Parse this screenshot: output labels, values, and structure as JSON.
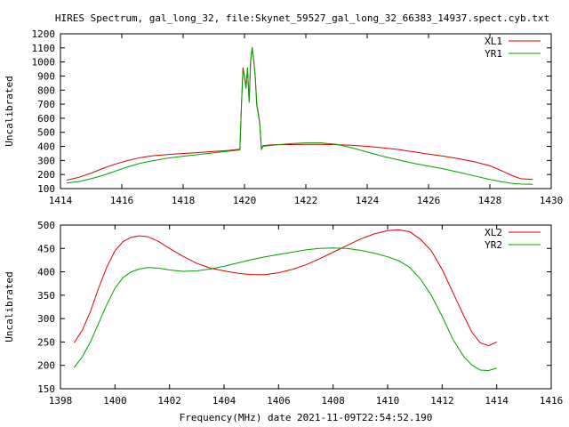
{
  "title": "HIRES Spectrum, gal_long_32, file:Skynet_59527_gal_long_32_66383_14937.spect.cyb.txt",
  "xlabel": "Frequency(MHz) date 2021-11-09T22:54:52.190",
  "chart_data": [
    {
      "type": "line",
      "xlabel": "",
      "ylabel": "Uncalibrated",
      "xlim": [
        1414,
        1430
      ],
      "ylim": [
        100,
        1200
      ],
      "xticks": [
        1414,
        1416,
        1418,
        1420,
        1422,
        1424,
        1426,
        1428,
        1430
      ],
      "yticks": [
        100,
        200,
        300,
        400,
        500,
        600,
        700,
        800,
        900,
        1000,
        1100,
        1200
      ],
      "legend": "top-right",
      "grid": false,
      "series": [
        {
          "name": "XL1",
          "color": "#dd0000",
          "x": [
            1414.2,
            1414.6,
            1415,
            1415.4,
            1415.8,
            1416.2,
            1416.6,
            1417,
            1417.5,
            1418,
            1418.5,
            1419,
            1419.5,
            1419.85,
            1419.9,
            1419.95,
            1420.0,
            1420.05,
            1420.1,
            1420.15,
            1420.2,
            1420.25,
            1420.3,
            1420.35,
            1420.4,
            1420.45,
            1420.5,
            1420.55,
            1420.6,
            1420.8,
            1421,
            1421.5,
            1422,
            1422.5,
            1423,
            1423.5,
            1424,
            1424.5,
            1425,
            1425.5,
            1426,
            1426.5,
            1427,
            1427.5,
            1428,
            1428.4,
            1428.7,
            1429,
            1429.4
          ],
          "values": [
            160,
            180,
            210,
            245,
            275,
            300,
            320,
            333,
            342,
            350,
            356,
            364,
            372,
            380,
            700,
            960,
            900,
            820,
            950,
            720,
            1000,
            1100,
            1020,
            900,
            700,
            640,
            560,
            380,
            405,
            410,
            412,
            413,
            414,
            414,
            412,
            408,
            400,
            390,
            378,
            362,
            345,
            330,
            312,
            290,
            262,
            225,
            195,
            170,
            165
          ]
        },
        {
          "name": "YR1",
          "color": "#00a000",
          "x": [
            1414.2,
            1414.6,
            1415,
            1415.4,
            1415.8,
            1416.2,
            1416.6,
            1417,
            1417.5,
            1418,
            1418.5,
            1419,
            1419.5,
            1419.85,
            1419.9,
            1419.95,
            1420.0,
            1420.05,
            1420.1,
            1420.15,
            1420.2,
            1420.25,
            1420.3,
            1420.35,
            1420.4,
            1420.45,
            1420.5,
            1420.55,
            1420.6,
            1420.8,
            1421,
            1421.5,
            1422,
            1422.5,
            1423,
            1423.5,
            1424,
            1424.5,
            1425,
            1425.5,
            1426,
            1426.5,
            1427,
            1427.5,
            1428,
            1428.4,
            1428.7,
            1429,
            1429.4
          ],
          "values": [
            140,
            150,
            170,
            195,
            225,
            255,
            280,
            298,
            316,
            330,
            342,
            355,
            366,
            375,
            690,
            950,
            890,
            810,
            960,
            710,
            1010,
            1105,
            1010,
            890,
            690,
            630,
            550,
            375,
            400,
            405,
            410,
            420,
            425,
            425,
            415,
            390,
            360,
            330,
            305,
            280,
            260,
            240,
            215,
            190,
            165,
            148,
            138,
            132,
            130
          ]
        }
      ]
    },
    {
      "type": "line",
      "xlabel": "Frequency(MHz) date 2021-11-09T22:54:52.190",
      "ylabel": "Uncalibrated",
      "xlim": [
        1398,
        1416
      ],
      "ylim": [
        150,
        500
      ],
      "xticks": [
        1398,
        1400,
        1402,
        1404,
        1406,
        1408,
        1410,
        1412,
        1414,
        1416
      ],
      "yticks": [
        150,
        200,
        250,
        300,
        350,
        400,
        450,
        500
      ],
      "legend": "top-right",
      "grid": false,
      "series": [
        {
          "name": "XL2",
          "color": "#dd0000",
          "x": [
            1398.5,
            1398.8,
            1399.1,
            1399.4,
            1399.7,
            1400,
            1400.3,
            1400.6,
            1400.9,
            1401.2,
            1401.6,
            1402,
            1402.5,
            1403,
            1403.5,
            1404,
            1404.5,
            1405,
            1405.5,
            1406,
            1406.5,
            1407,
            1407.5,
            1408,
            1408.5,
            1409,
            1409.5,
            1410,
            1410.4,
            1410.8,
            1411.2,
            1411.6,
            1412,
            1412.4,
            1412.8,
            1413.1,
            1413.4,
            1413.7,
            1414
          ],
          "values": [
            248,
            275,
            315,
            365,
            410,
            445,
            465,
            474,
            477,
            475,
            465,
            450,
            433,
            418,
            408,
            402,
            397,
            394,
            394,
            398,
            405,
            415,
            428,
            442,
            456,
            470,
            481,
            488,
            490,
            486,
            470,
            445,
            405,
            355,
            305,
            270,
            248,
            242,
            250
          ]
        },
        {
          "name": "YR2",
          "color": "#00a000",
          "x": [
            1398.5,
            1398.8,
            1399.1,
            1399.4,
            1399.7,
            1400,
            1400.3,
            1400.6,
            1400.9,
            1401.2,
            1401.6,
            1402,
            1402.5,
            1403,
            1403.5,
            1404,
            1404.5,
            1405,
            1405.5,
            1406,
            1406.5,
            1407,
            1407.5,
            1408,
            1408.5,
            1409,
            1409.5,
            1410,
            1410.4,
            1410.8,
            1411.2,
            1411.6,
            1412,
            1412.4,
            1412.8,
            1413.1,
            1413.4,
            1413.7,
            1414
          ],
          "values": [
            195,
            218,
            250,
            290,
            330,
            365,
            388,
            400,
            406,
            409,
            408,
            404,
            401,
            402,
            406,
            412,
            419,
            426,
            432,
            437,
            442,
            447,
            450,
            451,
            450,
            446,
            440,
            432,
            424,
            410,
            385,
            350,
            305,
            255,
            218,
            200,
            190,
            189,
            194
          ]
        }
      ]
    }
  ]
}
